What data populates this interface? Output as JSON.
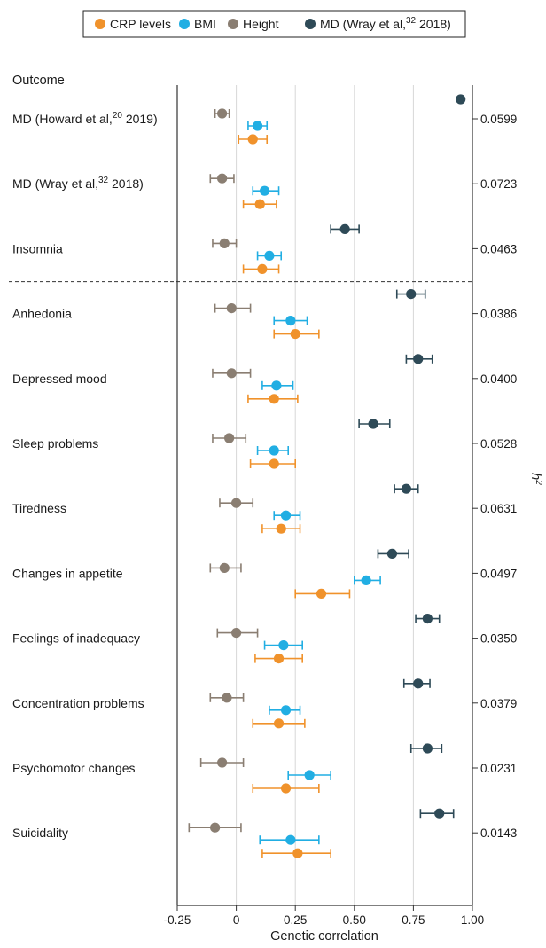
{
  "chart_data": {
    "type": "scatter",
    "title": "",
    "xlabel": "Genetic correlation",
    "ylabel_left": "Outcome",
    "ylabel_right": "h2",
    "xlim": [
      -0.25,
      1.0
    ],
    "xticks": [
      "-0.25",
      "0",
      "0.25",
      "0.50",
      "0.75",
      "1.00"
    ],
    "xtick_values": [
      -0.25,
      0,
      0.25,
      0.5,
      0.75,
      1.0
    ],
    "grid": true,
    "legend_position": "top",
    "series": [
      {
        "name": "CRP levels",
        "color": "#f0922b"
      },
      {
        "name": "BMI",
        "color": "#21aee3"
      },
      {
        "name": "Height",
        "color": "#8a7e72"
      },
      {
        "name": "MD (Wray et al, 2018)",
        "name_prefix": "MD (Wray et al,",
        "name_superscript": "32",
        "name_suffix": " 2018)",
        "color": "#2e4a57"
      }
    ],
    "outcomes": [
      {
        "label": "MD (Howard et al, 2019)",
        "label_prefix": "MD (Howard et al,",
        "label_superscript": "20",
        "label_suffix": " 2019)",
        "h2": "0.0599",
        "points": {
          "MD": {
            "v": 0.95,
            "lo": 0.95,
            "hi": 0.95
          },
          "Height": {
            "v": -0.06,
            "lo": -0.09,
            "hi": -0.03
          },
          "BMI": {
            "v": 0.09,
            "lo": 0.05,
            "hi": 0.13
          },
          "CRP": {
            "v": 0.07,
            "lo": 0.01,
            "hi": 0.13
          }
        }
      },
      {
        "label": "MD (Wray et al, 2018)",
        "label_prefix": "MD (Wray et al,",
        "label_superscript": "32",
        "label_suffix": " 2018)",
        "h2": "0.0723",
        "points": {
          "Height": {
            "v": -0.06,
            "lo": -0.11,
            "hi": -0.01
          },
          "BMI": {
            "v": 0.12,
            "lo": 0.07,
            "hi": 0.18
          },
          "CRP": {
            "v": 0.1,
            "lo": 0.03,
            "hi": 0.17
          }
        }
      },
      {
        "label": "Insomnia",
        "h2": "0.0463",
        "points": {
          "MD": {
            "v": 0.46,
            "lo": 0.4,
            "hi": 0.52
          },
          "Height": {
            "v": -0.05,
            "lo": -0.1,
            "hi": 0.0
          },
          "BMI": {
            "v": 0.14,
            "lo": 0.09,
            "hi": 0.19
          },
          "CRP": {
            "v": 0.11,
            "lo": 0.03,
            "hi": 0.18
          }
        }
      },
      {
        "label": "Anhedonia",
        "h2": "0.0386",
        "points": {
          "MD": {
            "v": 0.74,
            "lo": 0.68,
            "hi": 0.8
          },
          "Height": {
            "v": -0.02,
            "lo": -0.09,
            "hi": 0.06
          },
          "BMI": {
            "v": 0.23,
            "lo": 0.16,
            "hi": 0.3
          },
          "CRP": {
            "v": 0.25,
            "lo": 0.16,
            "hi": 0.35
          }
        }
      },
      {
        "label": "Depressed mood",
        "h2": "0.0400",
        "points": {
          "MD": {
            "v": 0.77,
            "lo": 0.72,
            "hi": 0.83
          },
          "Height": {
            "v": -0.02,
            "lo": -0.1,
            "hi": 0.06
          },
          "BMI": {
            "v": 0.17,
            "lo": 0.11,
            "hi": 0.24
          },
          "CRP": {
            "v": 0.16,
            "lo": 0.05,
            "hi": 0.26
          }
        }
      },
      {
        "label": "Sleep problems",
        "h2": "0.0528",
        "points": {
          "MD": {
            "v": 0.58,
            "lo": 0.52,
            "hi": 0.65
          },
          "Height": {
            "v": -0.03,
            "lo": -0.1,
            "hi": 0.04
          },
          "BMI": {
            "v": 0.16,
            "lo": 0.09,
            "hi": 0.22
          },
          "CRP": {
            "v": 0.16,
            "lo": 0.06,
            "hi": 0.25
          }
        }
      },
      {
        "label": "Tiredness",
        "h2": "0.0631",
        "points": {
          "MD": {
            "v": 0.72,
            "lo": 0.67,
            "hi": 0.77
          },
          "Height": {
            "v": 0.0,
            "lo": -0.07,
            "hi": 0.07
          },
          "BMI": {
            "v": 0.21,
            "lo": 0.16,
            "hi": 0.27
          },
          "CRP": {
            "v": 0.19,
            "lo": 0.11,
            "hi": 0.27
          }
        }
      },
      {
        "label": "Changes in appetite",
        "h2": "0.0497",
        "points": {
          "MD": {
            "v": 0.66,
            "lo": 0.6,
            "hi": 0.73
          },
          "Height": {
            "v": -0.05,
            "lo": -0.11,
            "hi": 0.02
          },
          "BMI": {
            "v": 0.55,
            "lo": 0.5,
            "hi": 0.61
          },
          "CRP": {
            "v": 0.36,
            "lo": 0.25,
            "hi": 0.48
          }
        }
      },
      {
        "label": "Feelings of inadequacy",
        "h2": "0.0350",
        "points": {
          "MD": {
            "v": 0.81,
            "lo": 0.76,
            "hi": 0.86
          },
          "Height": {
            "v": 0.0,
            "lo": -0.08,
            "hi": 0.09
          },
          "BMI": {
            "v": 0.2,
            "lo": 0.12,
            "hi": 0.28
          },
          "CRP": {
            "v": 0.18,
            "lo": 0.08,
            "hi": 0.28
          }
        }
      },
      {
        "label": "Concentration problems",
        "h2": "0.0379",
        "points": {
          "MD": {
            "v": 0.77,
            "lo": 0.71,
            "hi": 0.82
          },
          "Height": {
            "v": -0.04,
            "lo": -0.11,
            "hi": 0.03
          },
          "BMI": {
            "v": 0.21,
            "lo": 0.14,
            "hi": 0.27
          },
          "CRP": {
            "v": 0.18,
            "lo": 0.07,
            "hi": 0.29
          }
        }
      },
      {
        "label": "Psychomotor changes",
        "h2": "0.0231",
        "points": {
          "MD": {
            "v": 0.81,
            "lo": 0.74,
            "hi": 0.87
          },
          "Height": {
            "v": -0.06,
            "lo": -0.15,
            "hi": 0.03
          },
          "BMI": {
            "v": 0.31,
            "lo": 0.22,
            "hi": 0.4
          },
          "CRP": {
            "v": 0.21,
            "lo": 0.07,
            "hi": 0.35
          }
        }
      },
      {
        "label": "Suicidality",
        "h2": "0.0143",
        "points": {
          "MD": {
            "v": 0.86,
            "lo": 0.78,
            "hi": 0.92
          },
          "Height": {
            "v": -0.09,
            "lo": -0.2,
            "hi": 0.02
          },
          "BMI": {
            "v": 0.23,
            "lo": 0.1,
            "hi": 0.35
          },
          "CRP": {
            "v": 0.26,
            "lo": 0.11,
            "hi": 0.4
          }
        }
      }
    ]
  }
}
